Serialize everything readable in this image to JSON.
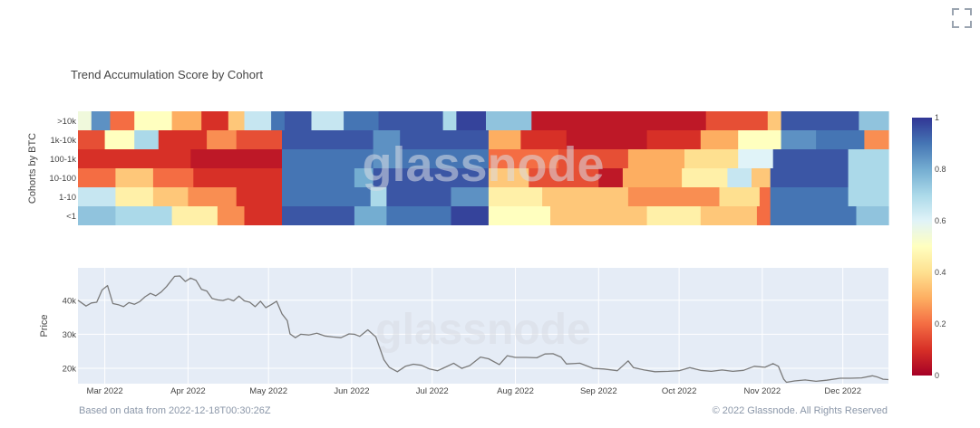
{
  "chart_data": [
    {
      "type": "heatmap",
      "title": "Trend Accumulation Score by Cohort",
      "ylabel": "Cohorts by BTC",
      "rows": [
        ">10k",
        "1k-10k",
        "100-1k",
        "10-100",
        "1-10",
        "<1"
      ],
      "x_start": "2022-02-19",
      "x_end": "2022-12-18",
      "colorscale_range": [
        0,
        1
      ],
      "colorbar_ticks": [
        "0",
        "0.2",
        "0.4",
        "0.6",
        "0.8",
        "1"
      ],
      "colors": [
        "#a50026",
        "#d73027",
        "#f46d43",
        "#fdae61",
        "#fee090",
        "#ffffbf",
        "#e0f3f8",
        "#abd9e9",
        "#74add1",
        "#4575b4",
        "#313695"
      ],
      "segments": {
        ">10k": [
          [
            0,
            "2022-02-19",
            0.55
          ],
          [
            1,
            "2022-02-24",
            0.85
          ],
          [
            2,
            "2022-03-03",
            0.2
          ],
          [
            3,
            "2022-03-12",
            0.5
          ],
          [
            4,
            "2022-03-26",
            0.3
          ],
          [
            5,
            "2022-04-06",
            0.1
          ],
          [
            6,
            "2022-04-16",
            0.35
          ],
          [
            7,
            "2022-04-22",
            0.65
          ],
          [
            8,
            "2022-05-02",
            0.9
          ],
          [
            9,
            "2022-05-07",
            0.95
          ],
          [
            10,
            "2022-05-17",
            0.65
          ],
          [
            11,
            "2022-05-29",
            0.9
          ],
          [
            12,
            "2022-06-11",
            0.95
          ],
          [
            13,
            "2022-07-05",
            0.7
          ],
          [
            14,
            "2022-07-10",
            0.98
          ],
          [
            15,
            "2022-07-21",
            0.75
          ],
          [
            16,
            "2022-08-07",
            0.05
          ],
          [
            17,
            "2022-10-11",
            0.15
          ],
          [
            18,
            "2022-11-03",
            0.35
          ],
          [
            19,
            "2022-11-08",
            0.95
          ],
          [
            20,
            "2022-12-07",
            0.75
          ]
        ],
        "1k-10k": [
          [
            0,
            "2022-02-19",
            0.15
          ],
          [
            1,
            "2022-03-01",
            0.5
          ],
          [
            2,
            "2022-03-12",
            0.7
          ],
          [
            3,
            "2022-03-21",
            0.1
          ],
          [
            4,
            "2022-04-08",
            0.25
          ],
          [
            5,
            "2022-04-19",
            0.15
          ],
          [
            6,
            "2022-05-06",
            0.95
          ],
          [
            7,
            "2022-06-09",
            0.85
          ],
          [
            8,
            "2022-06-19",
            0.95
          ],
          [
            9,
            "2022-07-22",
            0.3
          ],
          [
            10,
            "2022-08-03",
            0.1
          ],
          [
            11,
            "2022-08-20",
            0.05
          ],
          [
            12,
            "2022-09-19",
            0.1
          ],
          [
            13,
            "2022-10-09",
            0.3
          ],
          [
            14,
            "2022-10-23",
            0.5
          ],
          [
            15,
            "2022-11-08",
            0.85
          ],
          [
            16,
            "2022-11-21",
            0.9
          ],
          [
            17,
            "2022-12-09",
            0.25
          ]
        ],
        "100-1k": [
          [
            0,
            "2022-02-19",
            0.1
          ],
          [
            1,
            "2022-04-02",
            0.05
          ],
          [
            2,
            "2022-05-06",
            0.9
          ],
          [
            3,
            "2022-06-09",
            0.85
          ],
          [
            4,
            "2022-06-19",
            0.9
          ],
          [
            5,
            "2022-07-22",
            0.2
          ],
          [
            6,
            "2022-08-17",
            0.15
          ],
          [
            7,
            "2022-09-12",
            0.3
          ],
          [
            8,
            "2022-10-03",
            0.4
          ],
          [
            9,
            "2022-10-23",
            0.6
          ],
          [
            10,
            "2022-11-05",
            0.95
          ],
          [
            11,
            "2022-12-03",
            0.7
          ]
        ],
        "10-100": [
          [
            0,
            "2022-02-19",
            0.2
          ],
          [
            1,
            "2022-03-05",
            0.35
          ],
          [
            2,
            "2022-03-19",
            0.2
          ],
          [
            3,
            "2022-04-03",
            0.1
          ],
          [
            4,
            "2022-05-06",
            0.9
          ],
          [
            5,
            "2022-06-02",
            0.8
          ],
          [
            6,
            "2022-06-09",
            0.95
          ],
          [
            7,
            "2022-07-22",
            0.35
          ],
          [
            8,
            "2022-08-06",
            0.15
          ],
          [
            9,
            "2022-09-01",
            0.05
          ],
          [
            10,
            "2022-09-10",
            0.3
          ],
          [
            11,
            "2022-10-02",
            0.45
          ],
          [
            12,
            "2022-10-19",
            0.65
          ],
          [
            13,
            "2022-10-28",
            0.35
          ],
          [
            14,
            "2022-11-04",
            0.95
          ],
          [
            15,
            "2022-12-03",
            0.7
          ]
        ],
        "1-10": [
          [
            0,
            "2022-02-19",
            0.65
          ],
          [
            1,
            "2022-03-05",
            0.45
          ],
          [
            2,
            "2022-03-19",
            0.35
          ],
          [
            3,
            "2022-04-01",
            0.25
          ],
          [
            4,
            "2022-04-19",
            0.1
          ],
          [
            5,
            "2022-05-06",
            0.9
          ],
          [
            6,
            "2022-06-08",
            0.7
          ],
          [
            7,
            "2022-06-14",
            0.95
          ],
          [
            8,
            "2022-07-08",
            0.85
          ],
          [
            9,
            "2022-07-22",
            0.45
          ],
          [
            10,
            "2022-08-11",
            0.35
          ],
          [
            11,
            "2022-09-12",
            0.25
          ],
          [
            12,
            "2022-10-16",
            0.4
          ],
          [
            13,
            "2022-10-31",
            0.2
          ],
          [
            14,
            "2022-11-04",
            0.9
          ],
          [
            15,
            "2022-12-03",
            0.7
          ]
        ],
        "<1": [
          [
            0,
            "2022-02-19",
            0.75
          ],
          [
            1,
            "2022-03-05",
            0.7
          ],
          [
            2,
            "2022-03-26",
            0.45
          ],
          [
            3,
            "2022-04-12",
            0.25
          ],
          [
            4,
            "2022-04-22",
            0.1
          ],
          [
            5,
            "2022-05-06",
            0.95
          ],
          [
            6,
            "2022-06-02",
            0.8
          ],
          [
            7,
            "2022-06-14",
            0.9
          ],
          [
            8,
            "2022-07-08",
            0.98
          ],
          [
            9,
            "2022-07-22",
            0.5
          ],
          [
            10,
            "2022-08-14",
            0.35
          ],
          [
            11,
            "2022-09-19",
            0.45
          ],
          [
            12,
            "2022-10-09",
            0.35
          ],
          [
            13,
            "2022-10-30",
            0.2
          ],
          [
            14,
            "2022-11-04",
            0.9
          ],
          [
            15,
            "2022-12-06",
            0.75
          ]
        ]
      }
    },
    {
      "type": "line",
      "ylabel": "Price",
      "y_ticks": [
        "20k",
        "30k",
        "40k"
      ],
      "ylim": [
        15500,
        49500
      ],
      "x_ticks": [
        "Mar 2022",
        "Apr 2022",
        "May 2022",
        "Jun 2022",
        "Jul 2022",
        "Aug 2022",
        "Sep 2022",
        "Oct 2022",
        "Nov 2022",
        "Dec 2022"
      ],
      "x_tick_dates": [
        "2022-03-01",
        "2022-04-01",
        "2022-05-01",
        "2022-06-01",
        "2022-07-01",
        "2022-08-01",
        "2022-09-01",
        "2022-10-01",
        "2022-11-01",
        "2022-12-01"
      ],
      "line_color": "#7a7a7a",
      "series": [
        {
          "x": [
            "2022-02-19",
            "2022-02-22",
            "2022-02-24",
            "2022-02-26",
            "2022-02-28",
            "2022-03-02",
            "2022-03-04",
            "2022-03-06",
            "2022-03-08",
            "2022-03-10",
            "2022-03-12",
            "2022-03-14",
            "2022-03-16",
            "2022-03-18",
            "2022-03-20",
            "2022-03-22",
            "2022-03-24",
            "2022-03-27",
            "2022-03-29",
            "2022-03-31",
            "2022-04-02",
            "2022-04-04",
            "2022-04-06",
            "2022-04-08",
            "2022-04-10",
            "2022-04-12",
            "2022-04-14",
            "2022-04-16",
            "2022-04-18",
            "2022-04-20",
            "2022-04-22",
            "2022-04-24",
            "2022-04-26",
            "2022-04-28",
            "2022-04-30",
            "2022-05-02",
            "2022-05-04",
            "2022-05-06",
            "2022-05-08",
            "2022-05-09",
            "2022-05-11",
            "2022-05-13",
            "2022-05-16",
            "2022-05-19",
            "2022-05-22",
            "2022-05-25",
            "2022-05-28",
            "2022-05-31",
            "2022-06-02",
            "2022-06-04",
            "2022-06-07",
            "2022-06-10",
            "2022-06-13",
            "2022-06-15",
            "2022-06-18",
            "2022-06-21",
            "2022-06-24",
            "2022-06-27",
            "2022-06-30",
            "2022-07-03",
            "2022-07-06",
            "2022-07-09",
            "2022-07-12",
            "2022-07-15",
            "2022-07-19",
            "2022-07-22",
            "2022-07-26",
            "2022-07-29",
            "2022-08-01",
            "2022-08-05",
            "2022-08-09",
            "2022-08-12",
            "2022-08-15",
            "2022-08-18",
            "2022-08-20",
            "2022-08-25",
            "2022-08-30",
            "2022-09-03",
            "2022-09-08",
            "2022-09-12",
            "2022-09-14",
            "2022-09-18",
            "2022-09-22",
            "2022-09-27",
            "2022-10-01",
            "2022-10-05",
            "2022-10-09",
            "2022-10-13",
            "2022-10-17",
            "2022-10-21",
            "2022-10-25",
            "2022-10-29",
            "2022-11-02",
            "2022-11-05",
            "2022-11-07",
            "2022-11-09",
            "2022-11-10",
            "2022-11-13",
            "2022-11-17",
            "2022-11-21",
            "2022-11-25",
            "2022-11-30",
            "2022-12-04",
            "2022-12-08",
            "2022-12-12",
            "2022-12-14",
            "2022-12-16",
            "2022-12-18"
          ],
          "y": [
            40000,
            38300,
            39200,
            39400,
            43000,
            44300,
            39000,
            38700,
            38100,
            39300,
            38800,
            39600,
            41000,
            42000,
            41300,
            42400,
            44000,
            47000,
            47100,
            45500,
            46500,
            45800,
            43200,
            42700,
            40500,
            40100,
            39900,
            40400,
            39800,
            41200,
            39800,
            39400,
            38100,
            39700,
            37800,
            38700,
            39700,
            36000,
            34000,
            30100,
            29000,
            30000,
            29800,
            30300,
            29500,
            29200,
            29000,
            30100,
            30000,
            29400,
            31300,
            29200,
            22500,
            20300,
            19000,
            20600,
            21200,
            20900,
            19800,
            19300,
            20400,
            21500,
            20000,
            20800,
            23300,
            22800,
            21100,
            23700,
            23200,
            23200,
            23100,
            24200,
            24300,
            23300,
            21300,
            21500,
            20000,
            19800,
            19300,
            22200,
            20200,
            19500,
            19000,
            19100,
            19300,
            20200,
            19400,
            19100,
            19500,
            19100,
            19400,
            20600,
            20300,
            21400,
            20600,
            16800,
            15900,
            16300,
            16600,
            16200,
            16500,
            17100,
            17100,
            17200,
            17800,
            17400,
            16800,
            16700
          ]
        }
      ]
    }
  ],
  "watermark": "glassnode",
  "footer": {
    "left": "Based on data from 2022-12-18T00:30:26Z",
    "right": "© 2022 Glassnode. All Rights Reserved"
  },
  "icons": {
    "expand": "expand-icon"
  }
}
